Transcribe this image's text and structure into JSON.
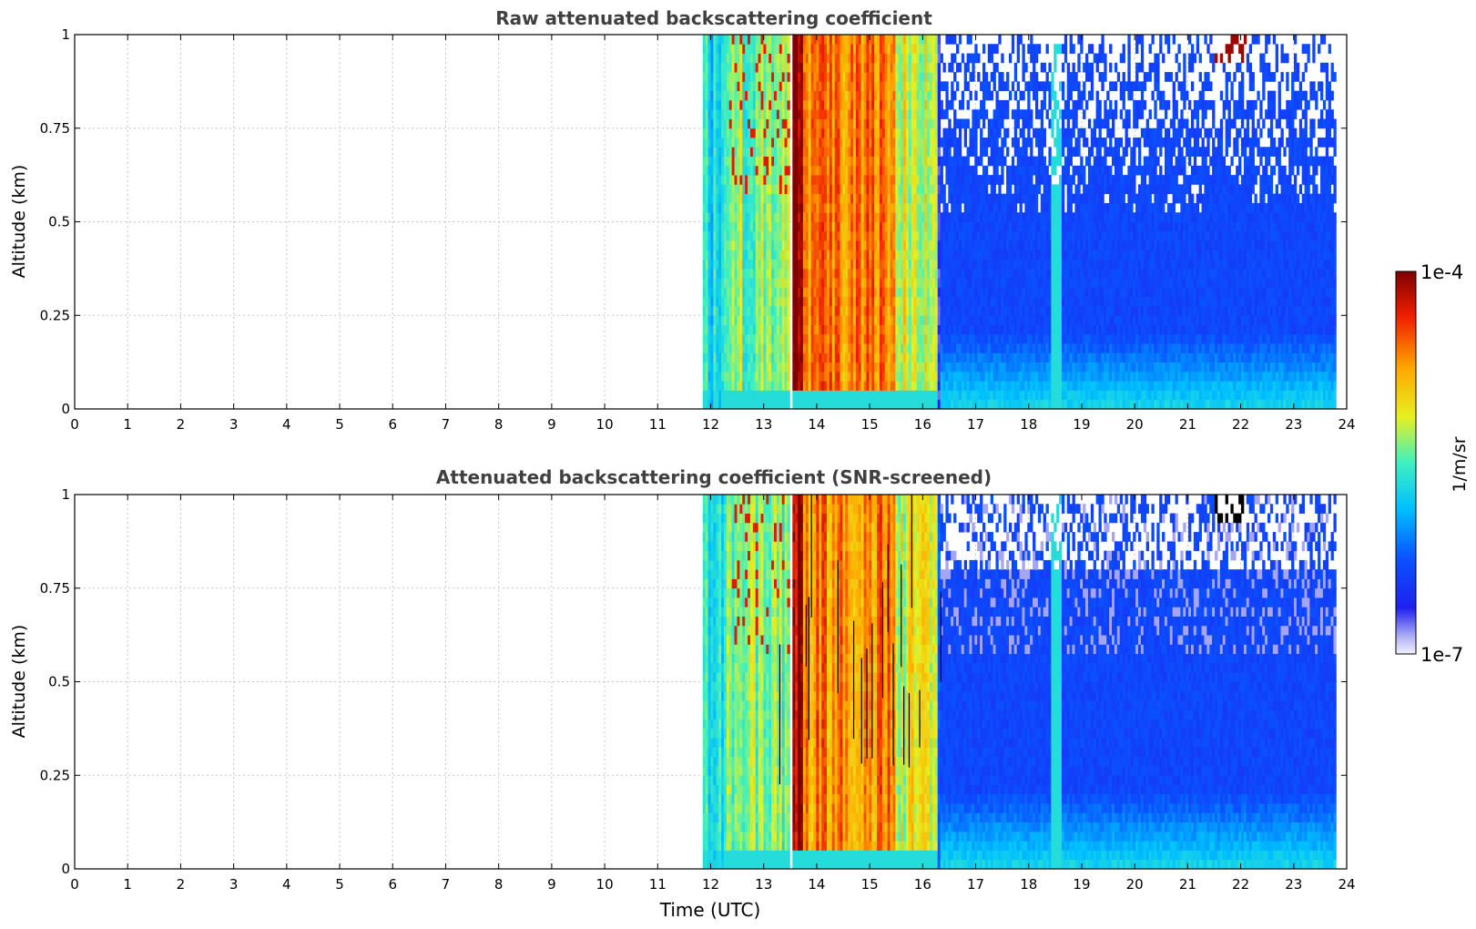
{
  "chart_data": [
    {
      "type": "heatmap",
      "title": "Raw attenuated backscattering coefficient",
      "xlabel": "",
      "ylabel": "Altitude (km)",
      "xlim": [
        0,
        24
      ],
      "ylim": [
        0,
        1
      ],
      "xticks": [
        "0",
        "1",
        "2",
        "3",
        "4",
        "5",
        "6",
        "7",
        "8",
        "9",
        "10",
        "11",
        "12",
        "13",
        "14",
        "15",
        "16",
        "17",
        "18",
        "19",
        "20",
        "21",
        "22",
        "23",
        "24"
      ],
      "yticks": [
        "0",
        "0.25",
        "0.5",
        "0.75",
        "1"
      ],
      "grid": true,
      "data_time_range": [
        11.85,
        23.8
      ],
      "regions": [
        {
          "t0": 11.85,
          "t1": 12.3,
          "level": 0.45,
          "desc": "cyan/green"
        },
        {
          "t0": 12.3,
          "t1": 13.5,
          "level": 0.55,
          "desc": "green/yellow with red streaks"
        },
        {
          "t0": 13.55,
          "t1": 13.75,
          "level": 0.95,
          "desc": "dark red"
        },
        {
          "t0": 13.75,
          "t1": 15.5,
          "level": 0.78,
          "desc": "orange/red"
        },
        {
          "t0": 15.5,
          "t1": 16.3,
          "level": 0.62,
          "desc": "yellow"
        },
        {
          "t0": 16.3,
          "t1": 23.8,
          "level": 0.2,
          "desc": "blue, noisy aloft"
        },
        {
          "t0": 21.5,
          "t1": 22.1,
          "level": 0.98,
          "desc": "cloud near 1 km"
        }
      ]
    },
    {
      "type": "heatmap",
      "title": "Attenuated backscattering coefficient (SNR-screened)",
      "xlabel": "Time (UTC)",
      "ylabel": "Altitude (km)",
      "xlim": [
        0,
        24
      ],
      "ylim": [
        0,
        1
      ],
      "xticks": [
        "0",
        "1",
        "2",
        "3",
        "4",
        "5",
        "6",
        "7",
        "8",
        "9",
        "10",
        "11",
        "12",
        "13",
        "14",
        "15",
        "16",
        "17",
        "18",
        "19",
        "20",
        "21",
        "22",
        "23",
        "24"
      ],
      "yticks": [
        "0",
        "0.25",
        "0.5",
        "0.75",
        "1"
      ],
      "grid": true,
      "data_time_range": [
        11.85,
        23.8
      ],
      "regions": [
        {
          "t0": 11.85,
          "t1": 12.3,
          "level": 0.45,
          "desc": "cyan/green"
        },
        {
          "t0": 12.3,
          "t1": 13.5,
          "level": 0.55,
          "desc": "green/yellow"
        },
        {
          "t0": 13.55,
          "t1": 13.75,
          "level": 0.95,
          "desc": "dark red"
        },
        {
          "t0": 13.75,
          "t1": 15.5,
          "level": 0.78,
          "desc": "orange/red"
        },
        {
          "t0": 15.5,
          "t1": 16.3,
          "level": 0.62,
          "desc": "yellow"
        },
        {
          "t0": 16.3,
          "t1": 23.8,
          "level": 0.2,
          "desc": "blue, screened aloft"
        },
        {
          "t0": 21.5,
          "t1": 22.1,
          "level": 1.0,
          "desc": "saturated cloud (black)"
        }
      ]
    }
  ],
  "colorbar": {
    "max_label": "1e-4",
    "min_label": "1e-7",
    "unit": "1/m/sr",
    "colormap": "jet"
  }
}
